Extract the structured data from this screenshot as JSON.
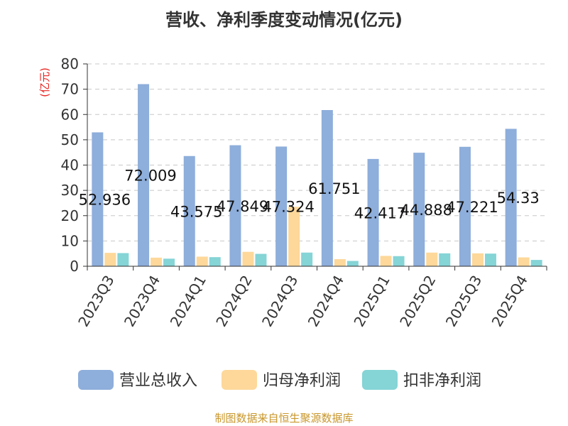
{
  "chart_data": {
    "type": "bar",
    "title": "营收、净利季度变动情况(亿元)",
    "ylabel": "(亿元)",
    "xlabel": "",
    "ylim": [
      0,
      80
    ],
    "yticks": [
      0,
      10,
      20,
      30,
      40,
      50,
      60,
      70,
      80
    ],
    "grid": true,
    "legend_position": "bottom",
    "categories": [
      "2023Q3",
      "2023Q4",
      "2024Q1",
      "2024Q2",
      "2024Q3",
      "2024Q4",
      "2025Q1",
      "2025Q2",
      "2025Q3",
      "2025Q4"
    ],
    "series": [
      {
        "name": "营业总收入",
        "color": "#8eaedb",
        "values": [
          52.936,
          72.009,
          43.575,
          47.849,
          47.324,
          61.751,
          42.417,
          44.888,
          47.221,
          54.33
        ],
        "labels": [
          "52.936",
          "72.009",
          "43.575",
          "47.849",
          "47.324",
          "61.751",
          "42.417",
          "44.888",
          "47.221",
          "54.33"
        ]
      },
      {
        "name": "归母净利润",
        "color": "#fdd89a",
        "values": [
          5.3,
          3.4,
          3.8,
          5.7,
          23.5,
          2.8,
          4.1,
          5.4,
          5.1,
          3.5
        ]
      },
      {
        "name": "扣非净利润",
        "color": "#85d4d6",
        "values": [
          5.2,
          3.0,
          3.6,
          4.9,
          5.4,
          2.1,
          4.0,
          5.1,
          5.0,
          2.5
        ]
      }
    ]
  },
  "source_note": "制图数据来自恒生聚源数据库"
}
